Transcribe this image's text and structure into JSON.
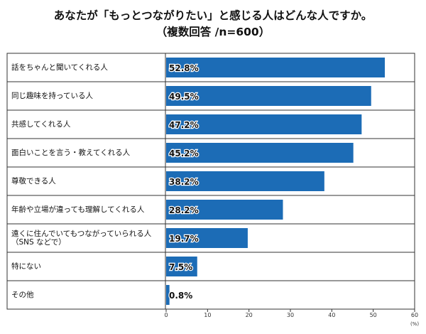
{
  "chart_data": {
    "type": "hbar",
    "title": "あなたが「もっとつながりたい」と感じる人はどんな人ですか。",
    "subtitle": "（複数回答 /n=600）",
    "categories": [
      "話をちゃんと聞いてくれる人",
      "同じ趣味を持っている人",
      "共感してくれる人",
      "面白いことを言う・教えてくれる人",
      "尊敬できる人",
      "年齢や立場が違っても理解してくれる人",
      "遠くに住んでいてもつながっていられる人（SNS などで）",
      "特にない",
      "その他"
    ],
    "values": [
      52.8,
      49.5,
      47.2,
      45.2,
      38.2,
      28.2,
      19.7,
      7.5,
      0.8
    ],
    "value_labels": [
      "52.8%",
      "49.5%",
      "47.2%",
      "45.2%",
      "38.2%",
      "28.2%",
      "19.7%",
      "7.5%",
      "0.8%"
    ],
    "color": "#1c6cb6",
    "xlim": [
      0,
      60
    ],
    "xticks": [
      0,
      10,
      20,
      30,
      40,
      50,
      60
    ],
    "x_label": "(%)"
  }
}
